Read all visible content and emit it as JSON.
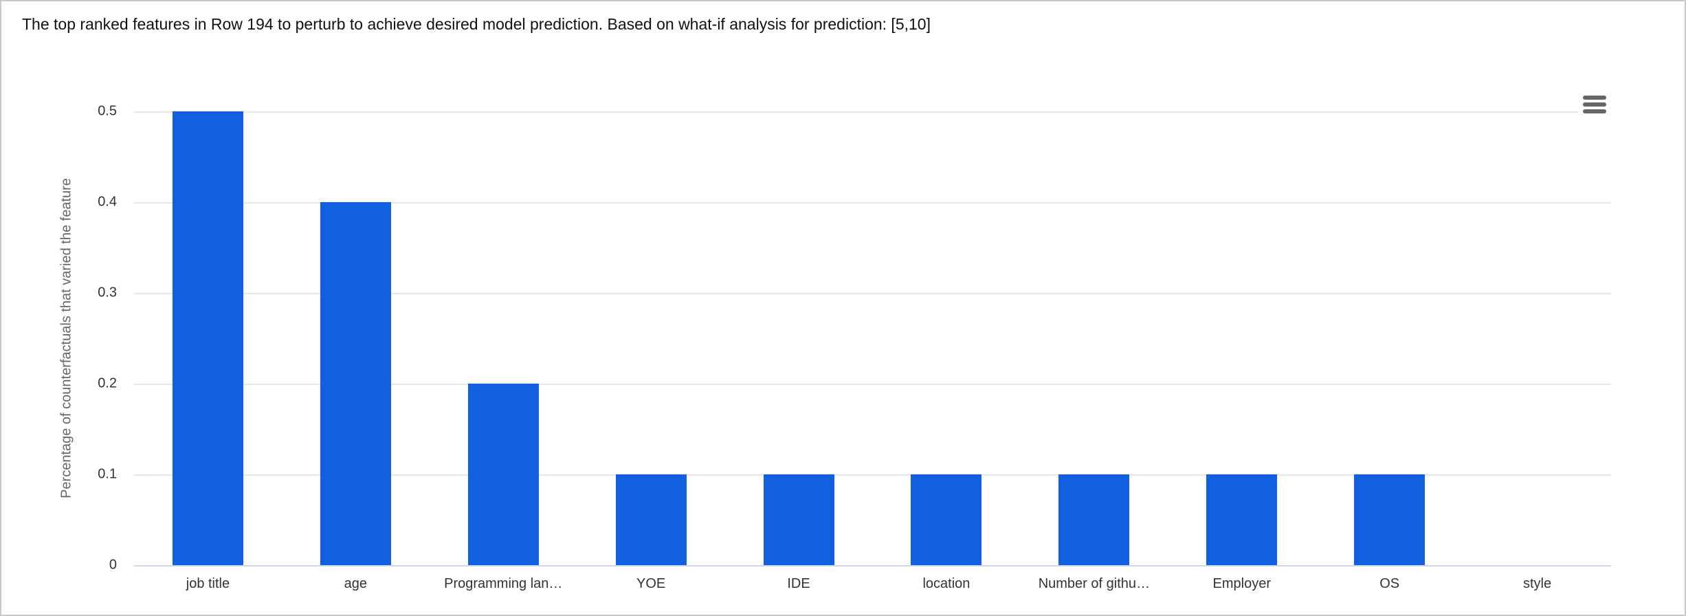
{
  "header": {
    "title": "The top ranked features in Row 194 to perturb to achieve desired model prediction. Based on what-if analysis for prediction: [5,10]"
  },
  "toolbar": {
    "menu_icon": "hamburger-icon"
  },
  "chart_data": {
    "type": "bar",
    "title": "The top ranked features in Row 194 to perturb to achieve desired model prediction. Based on what-if analysis for prediction: [5,10]",
    "categories": [
      "job title",
      "age",
      "Programming lan…",
      "YOE",
      "IDE",
      "location",
      "Number of githu…",
      "Employer",
      "OS",
      "style"
    ],
    "values": [
      0.5,
      0.4,
      0.2,
      0.1,
      0.1,
      0.1,
      0.1,
      0.1,
      0.1,
      0
    ],
    "xlabel": "",
    "ylabel": "Percentage of counterfactuals that varied the feature",
    "ylim": [
      0,
      0.5
    ],
    "ytick_values": [
      0,
      0.1,
      0.2,
      0.3,
      0.4,
      0.5
    ],
    "ytick_labels": [
      "0",
      "0.1",
      "0.2",
      "0.3",
      "0.4",
      "0.5"
    ],
    "grid": true,
    "legend_position": "none",
    "colors": {
      "bar": "#1260e0",
      "grid": "#e6e6e6",
      "axis_line": "#ccd6eb",
      "tick_label": "#333333",
      "axis_title": "#666666",
      "chart_title": "#111111",
      "menu_icon": "#666666"
    }
  }
}
